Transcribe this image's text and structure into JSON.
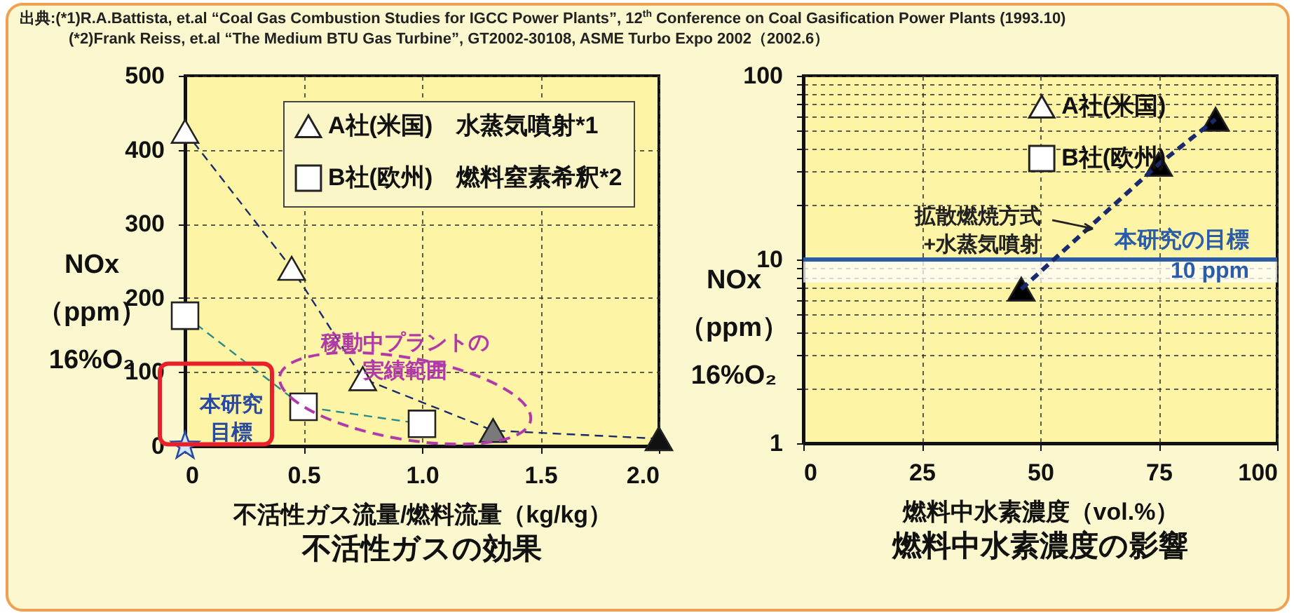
{
  "chart_data": [
    {
      "type": "line",
      "title": "不活性ガスの効果",
      "xlabel": "不活性ガス流量/燃料流量（kg/kg）",
      "ylabel": "NOx\n（ppm）\n16%O₂",
      "annotations": [
        "出典:(*1)R.A.Battista, et.al “Coal Gas Combustion Studies for IGCC Power Plants”, 12$^{th}$ Conference on Coal Gasification Power Plants (1993.10)",
        "(*2)Frank Reiss, et.al “The Medium BTU Gas Turbine”, GT2002-30108, ASME Turbo Expo 2002（2002.6）",
        "稼動中プラントの実績範囲",
        "本研究目標"
      ],
      "series": [
        {
          "name": "A社(米国)　水蒸気噴射*1",
          "type": "line",
          "marker": "triangle",
          "line_style": "dashed",
          "color": "#1a2a6c",
          "colors": [
            "#ffffff",
            "#ffffff",
            "#ffffff",
            "#7a7a7a",
            "#111111"
          ],
          "x": [
            0,
            0.45,
            0.75,
            1.3,
            2.0
          ],
          "values": [
            425,
            240,
            91,
            21,
            10
          ]
        },
        {
          "name": "B社(欧州)　燃料窒素希釈*2",
          "type": "line",
          "marker": "square",
          "line_style": "dashed",
          "color": "#2a8a8a",
          "colors": [
            "#ffffff",
            "#ffffff",
            "#ffffff"
          ],
          "x": [
            0,
            0.5,
            1.0
          ],
          "values": [
            176,
            53,
            30
          ]
        },
        {
          "type": "scatter",
          "marker": "star",
          "color": "#2a4aa0",
          "colors": [
            "#cfe6ff"
          ],
          "x": [
            0
          ],
          "values": [
            0
          ]
        }
      ],
      "xlim": [
        0,
        2.0
      ],
      "xticks": [
        0,
        0.5,
        {
          "value": 1,
          "label": "1.0"
        },
        1.5,
        {
          "value": 2,
          "label": "2.0"
        }
      ],
      "ylim": [
        0,
        500
      ],
      "yticks": [
        0,
        100,
        200,
        300,
        400,
        500
      ],
      "grid": true,
      "legend": "top right"
    },
    {
      "type": "line",
      "title": "燃料中水素濃度の影響",
      "xlabel": "燃料中水素濃度（vol.%）",
      "ylabel": "NOx\n（ppm）\n16%O₂",
      "annotations": [
        {
          "text": "拡散燃焼方式+水蒸気噴射",
          "x": 62,
          "y": 15
        }
      ],
      "series": [
        {
          "type": "line",
          "marker": "triangle",
          "line_style": "dashed",
          "color": "#1a2a6c",
          "colors": [
            "#000000",
            "#000000",
            "#000000"
          ],
          "x": [
            46,
            75,
            87
          ],
          "values": [
            6.9,
            33,
            58
          ]
        },
        {
          "name": "A社(米国)",
          "type": "scatter",
          "marker": "triangle",
          "color": "#ffffff"
        },
        {
          "name": "B社(欧州)",
          "type": "scatter",
          "marker": "square",
          "color": "#ffffff"
        }
      ],
      "xlim": [
        0,
        100
      ],
      "xticks": [
        0,
        25,
        50,
        75,
        100
      ],
      "ylim": [
        1,
        100
      ],
      "log": true,
      "yticks": [
        1,
        {
          "value": 2,
          "label": null
        },
        {
          "value": 3,
          "label": null
        },
        {
          "value": 4,
          "label": null
        },
        {
          "value": 5,
          "label": null
        },
        {
          "value": 6,
          "label": null
        },
        {
          "value": 7,
          "label": null
        },
        {
          "value": 8,
          "label": null
        },
        {
          "value": 9,
          "label": null
        },
        10,
        {
          "value": 20,
          "label": null
        },
        {
          "value": 30,
          "label": null
        },
        {
          "value": 40,
          "label": null
        },
        {
          "value": 50,
          "label": null
        },
        {
          "value": 60,
          "label": null
        },
        {
          "value": 70,
          "label": null
        },
        {
          "value": 80,
          "label": null
        },
        {
          "value": 90,
          "label": null
        },
        100
      ],
      "ref_lines": [
        {
          "axis": "y",
          "value": 10,
          "label": "本研究の目標 10 ppm",
          "color": "#2a5caa"
        }
      ],
      "bands": [
        {
          "axis": "y",
          "from": 7.5,
          "to": 10,
          "color": "#ffffff"
        }
      ],
      "grid": true,
      "legend": "top"
    }
  ]
}
